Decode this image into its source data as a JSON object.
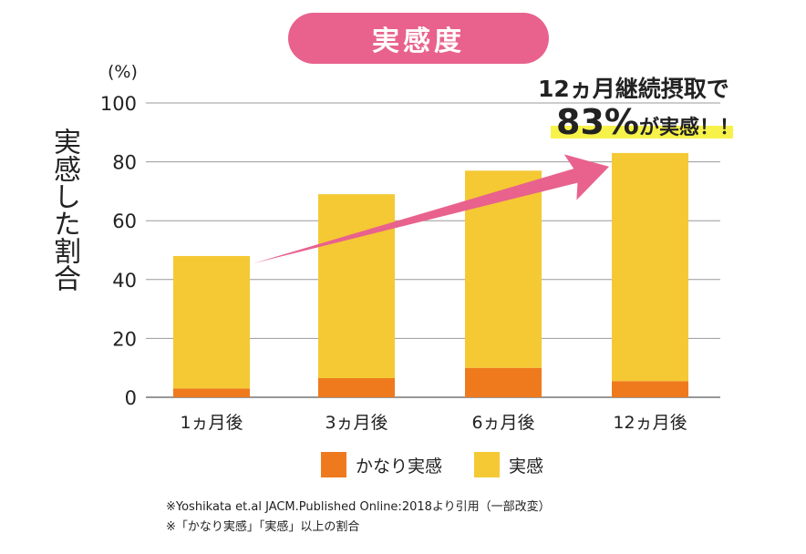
{
  "title": "実感度",
  "annotation": {
    "line1": "12ヵ月継続摂取で",
    "value": "83%",
    "line2": "が実感！！"
  },
  "notes": [
    "※Yoshikata et.al JACM.Published Online:2018より引用（一部改変）",
    "※「かなり実感」「実感」以上の割合"
  ],
  "chart_data": {
    "type": "bar",
    "stacked": true,
    "categories": [
      "1ヵ月後",
      "3ヵ月後",
      "6ヵ月後",
      "12ヵ月後"
    ],
    "series": [
      {
        "name": "かなり実感",
        "color": "#ef7a1d",
        "values": [
          3,
          6.5,
          10,
          5.5
        ]
      },
      {
        "name": "実感",
        "color": "#f4c934",
        "values": [
          45,
          62.5,
          67,
          77.5
        ]
      }
    ],
    "totals": [
      48,
      69,
      77,
      83
    ],
    "ylabel": "実感した割合",
    "yunit": "(%)",
    "ylim": [
      0,
      100
    ],
    "yticks": [
      "0",
      "20",
      "40",
      "60",
      "80",
      "100"
    ],
    "grid": true,
    "legend": "bottom"
  }
}
